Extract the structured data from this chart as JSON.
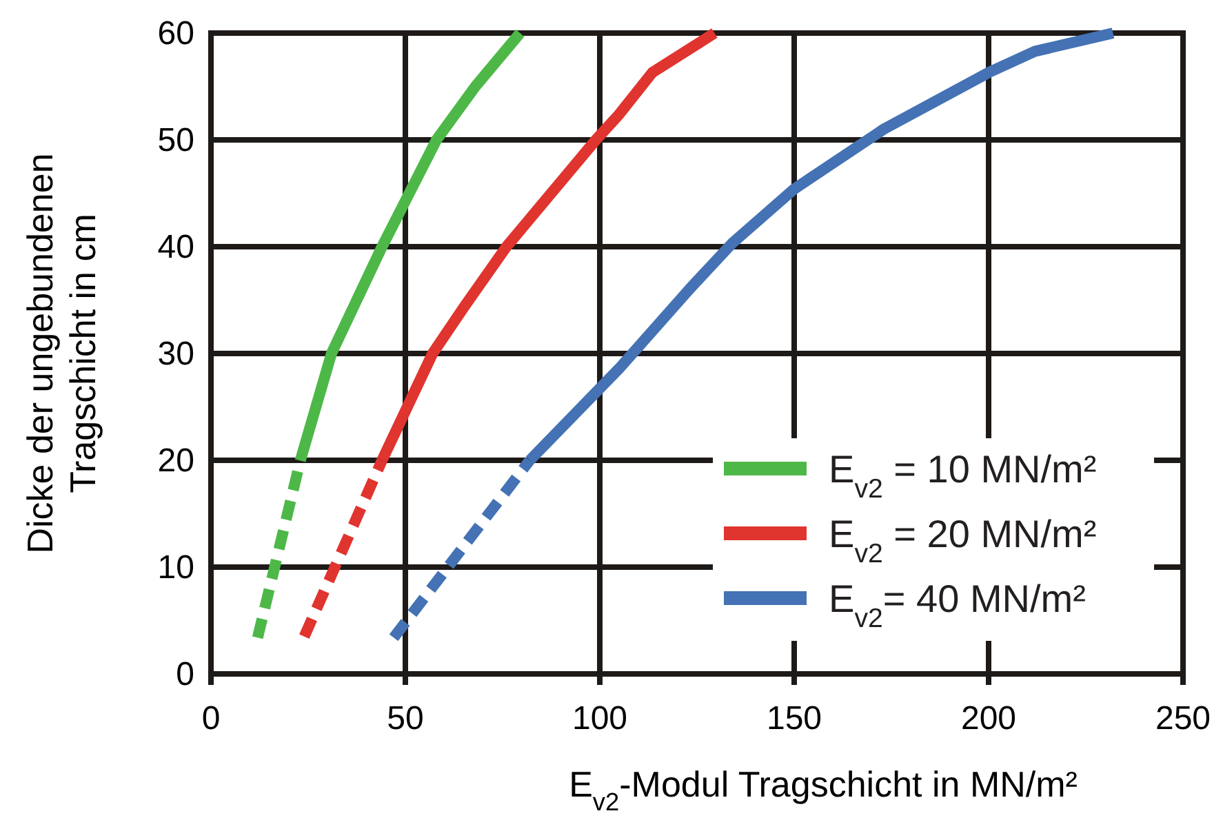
{
  "chart_data": {
    "type": "line",
    "xlabel": "E$_{v2}$-Modul Tragschicht in MN/m²",
    "ylabel": "Dicke der ungebundenen\nTragschicht in cm",
    "xlim": [
      0,
      250
    ],
    "ylim": [
      0,
      60
    ],
    "xticks": [
      0,
      50,
      100,
      150,
      200,
      250
    ],
    "yticks": [
      0,
      10,
      20,
      30,
      40,
      50,
      60
    ],
    "grid": true,
    "legend": "bottom right",
    "marker": "none",
    "series": [
      {
        "color": "#4db848",
        "line_style": "dashed",
        "x": [
          12,
          23
        ],
        "values": [
          3.4,
          20
        ]
      },
      {
        "name": "E$_{v2}$ = 10 MN/m²",
        "color": "#4db848",
        "line_style": "solid",
        "x": [
          23,
          31,
          44,
          58,
          68,
          79.5
        ],
        "values": [
          20,
          30,
          40,
          50,
          55,
          60
        ]
      },
      {
        "color": "#e0342f",
        "line_style": "dashed",
        "x": [
          24,
          44
        ],
        "values": [
          3.5,
          20
        ]
      },
      {
        "name": "E$_{v2}$ = 20 MN/m²",
        "color": "#e0342f",
        "line_style": "solid",
        "x": [
          44,
          57,
          65,
          76,
          99,
          105,
          113.5,
          129.5
        ],
        "values": [
          20,
          30,
          34.3,
          40,
          50,
          52.4,
          56.3,
          60
        ]
      },
      {
        "color": "#4472b4",
        "line_style": "dashed",
        "x": [
          47,
          82
        ],
        "values": [
          3.4,
          20
        ]
      },
      {
        "name": "E$_{v2}$= 40 MN/m²",
        "color": "#4472b4",
        "line_style": "solid",
        "x": [
          82,
          105,
          123,
          134,
          150,
          173,
          200,
          212,
          232
        ],
        "values": [
          20,
          28.6,
          36,
          40.3,
          45.4,
          51,
          56.3,
          58.3,
          60
        ]
      }
    ]
  }
}
